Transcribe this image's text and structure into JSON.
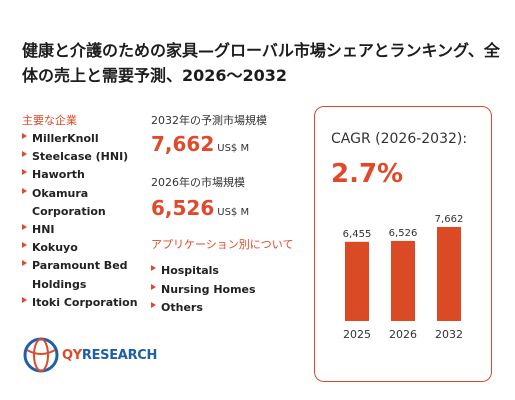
{
  "title": "健康と介護のための家具—グローバル市場シェアとランキング、全体の売上と需要予測、2026〜2032",
  "companies_label": "主要な企業",
  "companies": [
    "MillerKnoll",
    "Steelcase (HNI)",
    "Haworth",
    "Okamura Corporation",
    "HNI",
    "Kokuyo",
    "Paramount Bed Holdings",
    "Itoki Corporation"
  ],
  "forecast": {
    "label": "2032年の予測市場規模",
    "value": "7,662",
    "unit": "US$ M"
  },
  "current": {
    "label": "2026年の市場規模",
    "value": "6,526",
    "unit": "US$ M"
  },
  "applications_label": "アプリケーション別について",
  "applications": [
    "Hospitals",
    "Nursing Homes",
    "Others"
  ],
  "cagr": {
    "label": "CAGR (2026-2032):",
    "value": "2.7%"
  },
  "logo": {
    "text_prefix": "QY",
    "text_suffix": "RESEARCH"
  },
  "colors": {
    "accent": "#e0492a",
    "bar": "#d94a25",
    "logo_blue": "#1f5fa8"
  },
  "chart_data": {
    "type": "bar",
    "categories": [
      "2025",
      "2026",
      "2032"
    ],
    "values": [
      6455,
      6526,
      7662
    ],
    "data_labels": [
      "6,455",
      "6,526",
      "7,662"
    ],
    "ylim": [
      0,
      7662
    ]
  }
}
